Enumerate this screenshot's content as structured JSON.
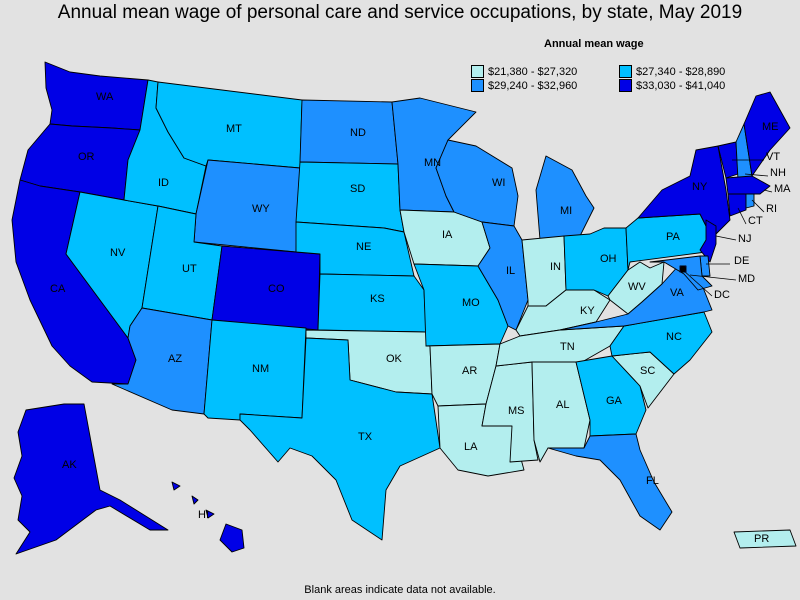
{
  "title": "Annual mean wage of personal care and service occupations, by state, May 2019",
  "legend": {
    "title": "Annual mean wage",
    "ranges": [
      {
        "label": "$21,380 - $27,320",
        "color": "#b3eeee"
      },
      {
        "label": "$27,340 - $28,890",
        "color": "#00c0ff"
      },
      {
        "label": "$29,240 - $32,960",
        "color": "#1e90ff"
      },
      {
        "label": "$33,030 - $41,040",
        "color": "#0000e6"
      }
    ]
  },
  "footnote": "Blank areas indicate data not available.",
  "states": {
    "WA": 3,
    "OR": 3,
    "CA": 3,
    "NV": 1,
    "ID": 1,
    "MT": 1,
    "WY": 2,
    "UT": 1,
    "CO": 3,
    "AZ": 2,
    "NM": 1,
    "ND": 2,
    "SD": 1,
    "NE": 1,
    "KS": 1,
    "OK": 0,
    "TX": 1,
    "MN": 2,
    "IA": 0,
    "MO": 1,
    "AR": 0,
    "LA": 0,
    "WI": 2,
    "IL": 2,
    "MS": 0,
    "MI": 2,
    "IN": 0,
    "KY": 0,
    "TN": 0,
    "AL": 0,
    "OH": 1,
    "WV": 0,
    "GA": 1,
    "FL": 2,
    "SC": 0,
    "NC": 1,
    "VA": 2,
    "PA": 1,
    "NY": 3,
    "VT": 3,
    "NH": 2,
    "ME": 3,
    "MA": 3,
    "RI": 2,
    "CT": 3,
    "NJ": 3,
    "DE": 2,
    "MD": 2,
    "DC": 3,
    "AK": 3,
    "HI": 3,
    "PR": 0
  }
}
